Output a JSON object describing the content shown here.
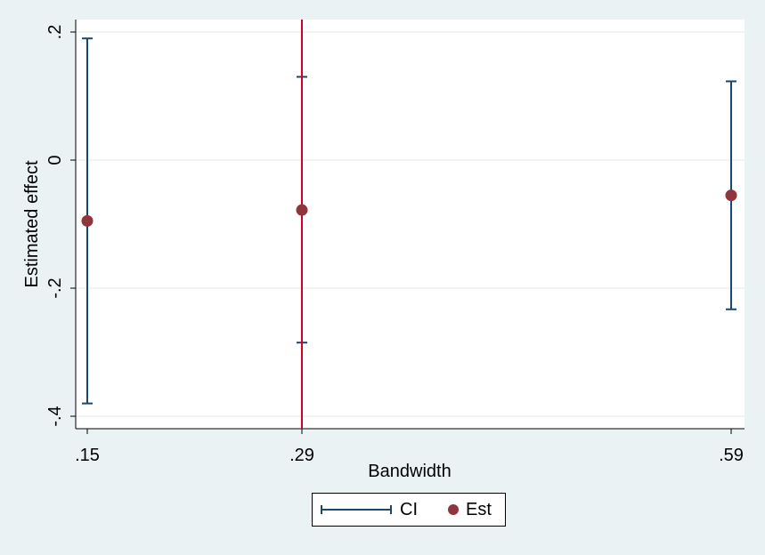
{
  "chart_data": {
    "type": "scatter",
    "xlabel": "Bandwidth",
    "ylabel": "Estimated effect",
    "x_categories": [
      ".15",
      ".29",
      ".59"
    ],
    "x_values": [
      0.15,
      0.29,
      0.59
    ],
    "ylim": [
      -0.42,
      0.22
    ],
    "y_ticks": [
      0.2,
      0,
      -0.2,
      -0.4
    ],
    "y_tick_labels": [
      ".2",
      "0",
      "-.2",
      "-.4"
    ],
    "series": [
      {
        "name": "CI",
        "kind": "error-bar",
        "lower": [
          -0.38,
          -0.285,
          -0.233
        ],
        "upper": [
          0.19,
          0.13,
          0.123
        ]
      },
      {
        "name": "Est",
        "kind": "point",
        "values": [
          -0.095,
          -0.078,
          -0.055
        ]
      }
    ],
    "reference_line_x": 0.29,
    "grid": "horizontal",
    "legend_position": "bottom"
  },
  "colors": {
    "ci": "#1a476f",
    "est": "#90353b",
    "reference": "#d4002a",
    "grid": "#eaf2f3",
    "background": "#eaf2f3"
  }
}
